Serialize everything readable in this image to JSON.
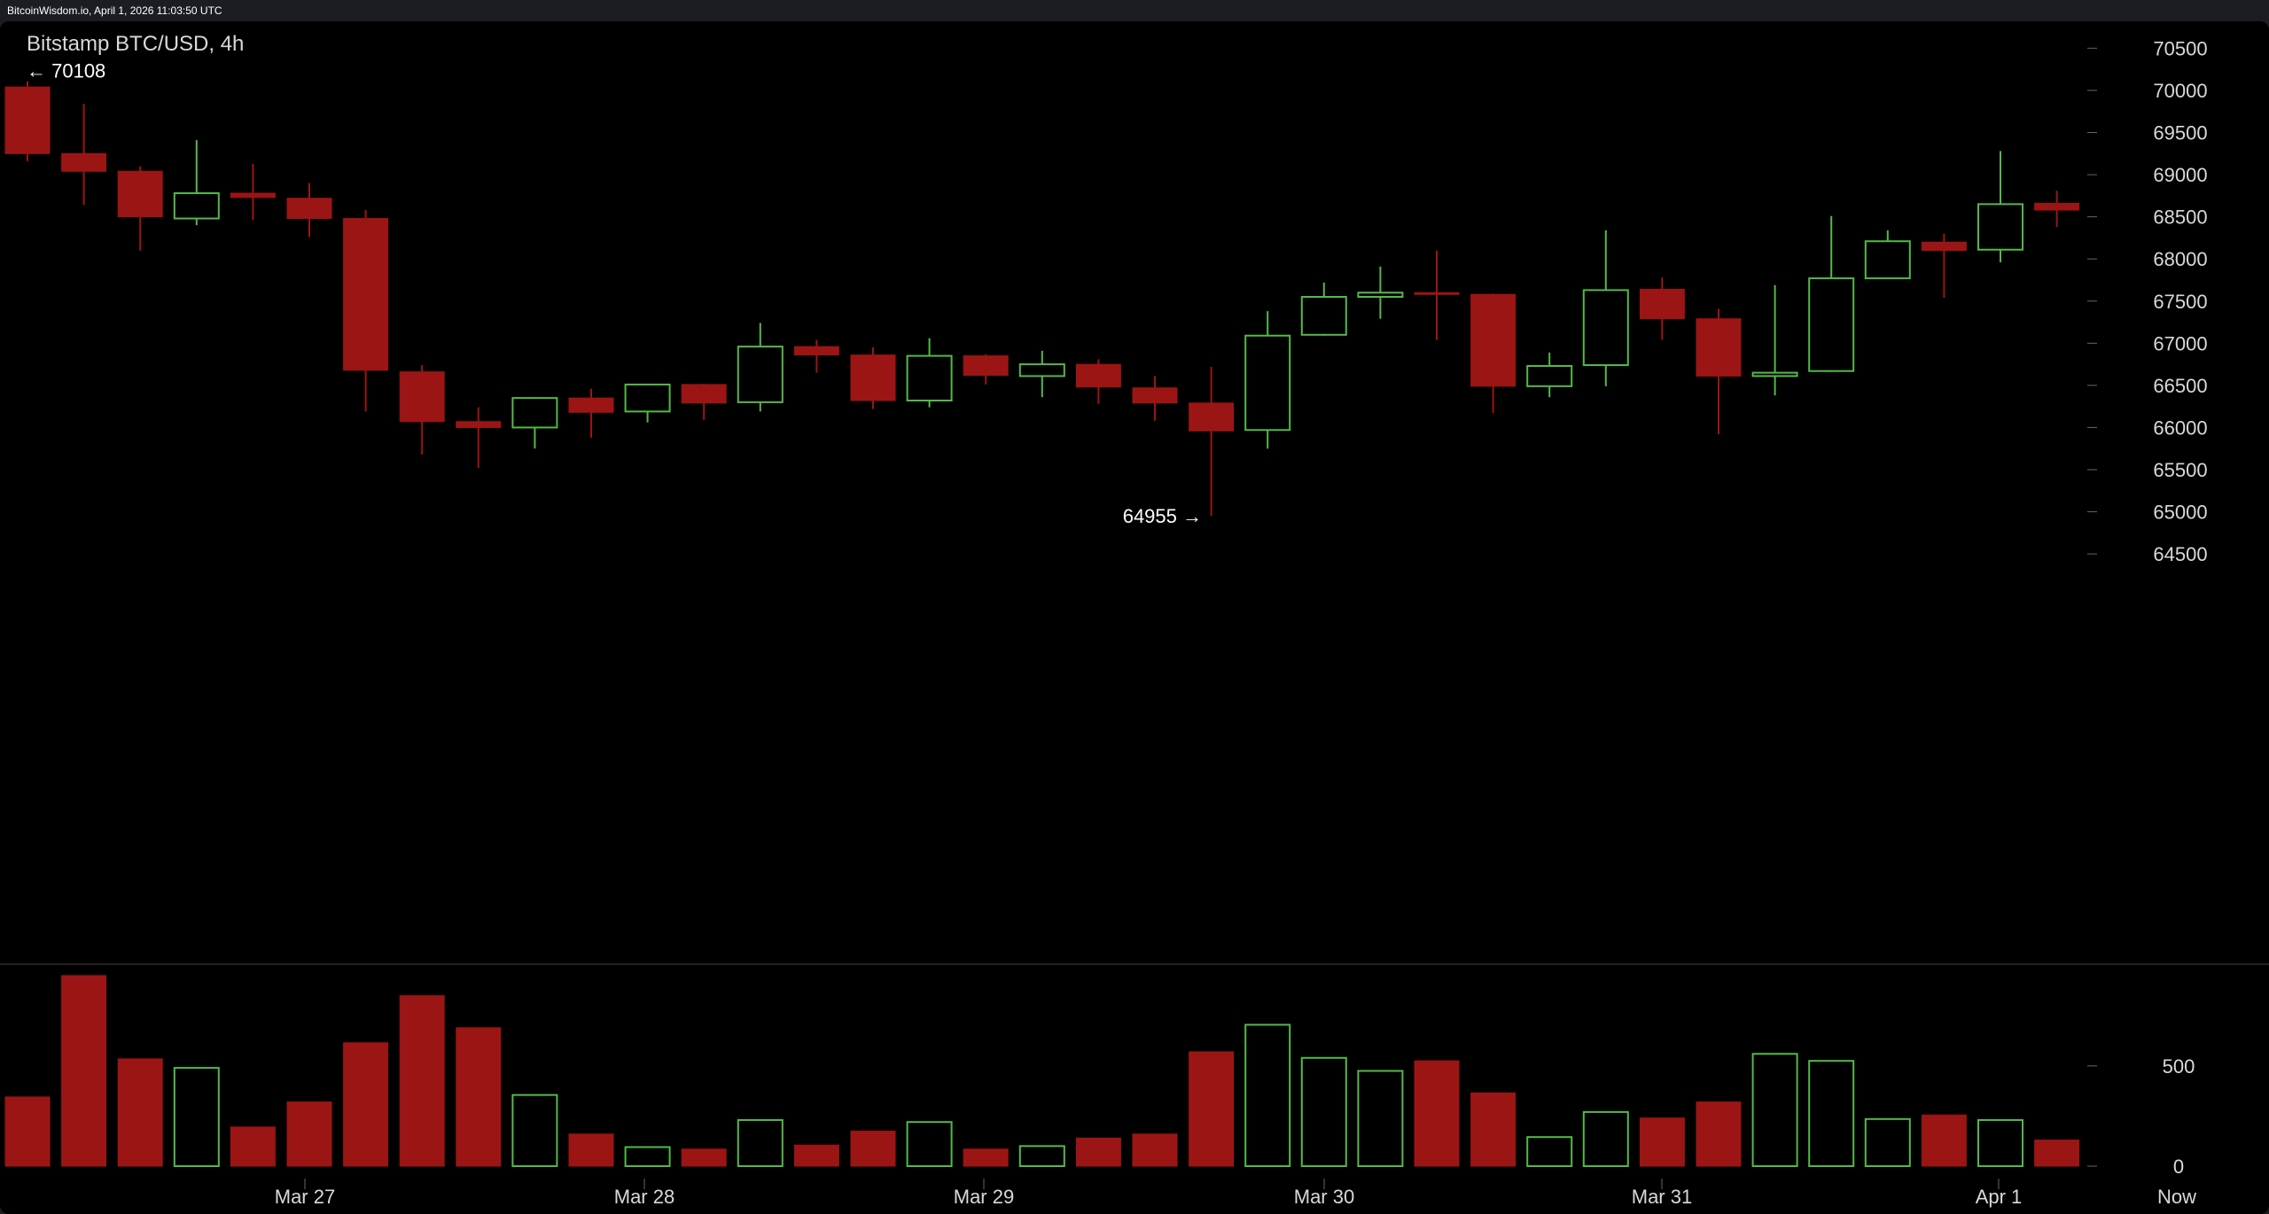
{
  "header": {
    "caption": "BitcoinWisdom.io, April 1, 2026 11:03:50 UTC"
  },
  "chart_data": {
    "type": "candlestick",
    "title": "Bitstamp BTC/USD, 4h",
    "price_axis": {
      "ylim": [
        64070,
        70820
      ],
      "ticks": [
        64500,
        65000,
        65500,
        66000,
        66500,
        67000,
        67500,
        68000,
        68500,
        69000,
        69500,
        70000,
        70500
      ]
    },
    "volume_axis": {
      "ylim": [
        0,
        950
      ],
      "ticks": [
        0,
        500
      ]
    },
    "x_labels": [
      "Mar 27",
      "Mar 28",
      "Mar 29",
      "Mar 30",
      "Mar 31",
      "Apr 1",
      "Now"
    ],
    "annotations": [
      {
        "text": "← 70108",
        "value": 70108
      },
      {
        "text": "64955 →",
        "value": 64955
      }
    ],
    "colors": {
      "up": "#54b948",
      "down": "#9c1515",
      "axis_text": "#d9d9d9",
      "tick": "#666666"
    },
    "candles": [
      {
        "open": 70040,
        "high": 70108,
        "low": 69160,
        "close": 69250,
        "volume": 345
      },
      {
        "open": 69250,
        "high": 69840,
        "low": 68640,
        "close": 69040,
        "volume": 950
      },
      {
        "open": 69040,
        "high": 69100,
        "low": 68100,
        "close": 68500,
        "volume": 535
      },
      {
        "open": 68480,
        "high": 69410,
        "low": 68400,
        "close": 68780,
        "volume": 490
      },
      {
        "open": 68780,
        "high": 69130,
        "low": 68460,
        "close": 68730,
        "volume": 195
      },
      {
        "open": 68720,
        "high": 68900,
        "low": 68260,
        "close": 68480,
        "volume": 320
      },
      {
        "open": 68480,
        "high": 68580,
        "low": 66190,
        "close": 66680,
        "volume": 615
      },
      {
        "open": 66660,
        "high": 66740,
        "low": 65680,
        "close": 66070,
        "volume": 850
      },
      {
        "open": 66070,
        "high": 66240,
        "low": 65520,
        "close": 66000,
        "volume": 690
      },
      {
        "open": 66000,
        "high": 66360,
        "low": 65750,
        "close": 66350,
        "volume": 355
      },
      {
        "open": 66350,
        "high": 66460,
        "low": 65880,
        "close": 66180,
        "volume": 160
      },
      {
        "open": 66190,
        "high": 66520,
        "low": 66060,
        "close": 66510,
        "volume": 95
      },
      {
        "open": 66510,
        "high": 66520,
        "low": 66090,
        "close": 66290,
        "volume": 85
      },
      {
        "open": 66300,
        "high": 67240,
        "low": 66190,
        "close": 66960,
        "volume": 230
      },
      {
        "open": 66960,
        "high": 67040,
        "low": 66650,
        "close": 66860,
        "volume": 105
      },
      {
        "open": 66860,
        "high": 66950,
        "low": 66220,
        "close": 66320,
        "volume": 175
      },
      {
        "open": 66320,
        "high": 67060,
        "low": 66240,
        "close": 66850,
        "volume": 220
      },
      {
        "open": 66850,
        "high": 66870,
        "low": 66510,
        "close": 66620,
        "volume": 85
      },
      {
        "open": 66610,
        "high": 66910,
        "low": 66360,
        "close": 66750,
        "volume": 100
      },
      {
        "open": 66750,
        "high": 66810,
        "low": 66280,
        "close": 66480,
        "volume": 140
      },
      {
        "open": 66470,
        "high": 66610,
        "low": 66080,
        "close": 66290,
        "volume": 160
      },
      {
        "open": 66290,
        "high": 66720,
        "low": 64955,
        "close": 65960,
        "volume": 570
      },
      {
        "open": 65970,
        "high": 67380,
        "low": 65750,
        "close": 67090,
        "volume": 705
      },
      {
        "open": 67100,
        "high": 67720,
        "low": 67090,
        "close": 67550,
        "volume": 540
      },
      {
        "open": 67550,
        "high": 67910,
        "low": 67290,
        "close": 67600,
        "volume": 475
      },
      {
        "open": 67600,
        "high": 68100,
        "low": 67040,
        "close": 67580,
        "volume": 525
      },
      {
        "open": 67580,
        "high": 67590,
        "low": 66170,
        "close": 66490,
        "volume": 365
      },
      {
        "open": 66490,
        "high": 66890,
        "low": 66360,
        "close": 66730,
        "volume": 145
      },
      {
        "open": 66740,
        "high": 68340,
        "low": 66490,
        "close": 67630,
        "volume": 270
      },
      {
        "open": 67640,
        "high": 67780,
        "low": 67040,
        "close": 67290,
        "volume": 240
      },
      {
        "open": 67290,
        "high": 67410,
        "low": 65920,
        "close": 66610,
        "volume": 320
      },
      {
        "open": 66610,
        "high": 67690,
        "low": 66380,
        "close": 66650,
        "volume": 560
      },
      {
        "open": 66670,
        "high": 68510,
        "low": 66660,
        "close": 67770,
        "volume": 525
      },
      {
        "open": 67770,
        "high": 68340,
        "low": 67770,
        "close": 68210,
        "volume": 235
      },
      {
        "open": 68200,
        "high": 68300,
        "low": 67540,
        "close": 68100,
        "volume": 255
      },
      {
        "open": 68110,
        "high": 69280,
        "low": 67960,
        "close": 68650,
        "volume": 230
      },
      {
        "open": 68660,
        "high": 68810,
        "low": 68380,
        "close": 68580,
        "volume": 130
      }
    ]
  }
}
